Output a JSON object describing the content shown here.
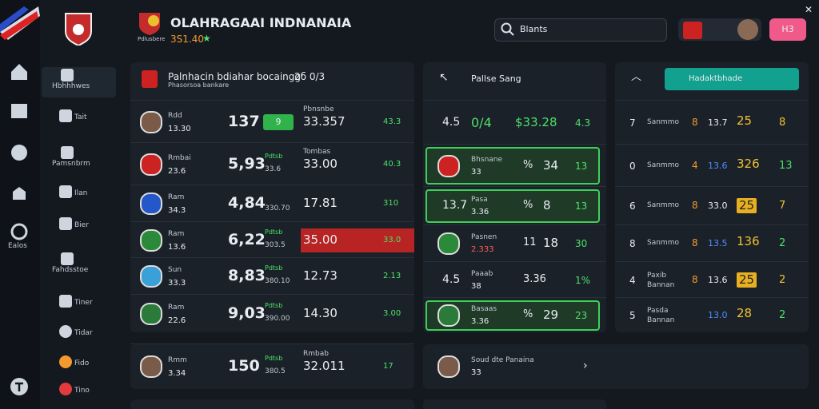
{
  "sidebar": {
    "rail_label": "Ealos",
    "items": [
      "Hbhhhwes",
      "Tait",
      "Pamsnbrm",
      "Ilan",
      "Bier",
      "Fahdsstoe",
      "Tiner",
      "Tidar",
      "Fido",
      "Tino"
    ]
  },
  "header": {
    "title": "OLAHRAGAAI INDNANAIA",
    "subtitle": "3S1.40",
    "logo_caption": "Pdlusbere",
    "search": "Blants",
    "button": "H3"
  },
  "main_panel": {
    "title": "Palnhacin bdiahar bocaingg",
    "score": "2б 0/3",
    "subtitle": "Phasorsoa bankare",
    "rows": [
      {
        "name": "Rdd",
        "sub": "13.30",
        "value": "137",
        "badge": "9",
        "odds_label": "Pbnsnbe",
        "odds": "33.357",
        "extra": "43.3"
      },
      {
        "name": "Rmbai",
        "sub": "23.6",
        "value": "5,93",
        "tag": "Pdtsb",
        "tag_sub": "33.6",
        "odds_label": "Tombas",
        "odds": "33.00",
        "extra": "40.3"
      },
      {
        "name": "Ram",
        "sub": "34.3",
        "value": "4,84",
        "tag_sub": "330.70",
        "odds": "17.81",
        "extra": "310"
      },
      {
        "name": "Ram",
        "sub": "13.6",
        "value": "6,22",
        "tag": "Pdtsb",
        "tag_sub": "303.5",
        "odds": "35.00",
        "extra": "33.0"
      },
      {
        "name": "Sun",
        "sub": "33.3",
        "value": "8,83",
        "tag": "Pdtsb",
        "tag_sub": "380.10",
        "odds": "12.73",
        "extra": "2.13"
      },
      {
        "name": "Ram",
        "sub": "22.6",
        "value": "9,03",
        "tag": "Pdtsb",
        "tag_sub": "390.00",
        "odds": "14.30",
        "extra": "3.00"
      }
    ]
  },
  "middle_panel": {
    "title": "Pallse Sang",
    "rows": [
      {
        "lead": "4.5",
        "a": "0/4",
        "b": "$33.28",
        "c": "4.3"
      },
      {
        "name": "Bhsnane",
        "sub": "33",
        "a": "%",
        "b": "34",
        "c": "13"
      },
      {
        "lead": "13.7",
        "name": "Pasa",
        "sub": "3.36",
        "a": "%",
        "b": "8",
        "c": "13"
      },
      {
        "name": "Pasnen",
        "sub": "2.333",
        "a": "11",
        "b": "18",
        "c": "30"
      },
      {
        "lead": "4.5",
        "name": "Paaab",
        "sub": "38",
        "a": "3.36",
        "c": "1%"
      },
      {
        "name": "Basaas",
        "sub": "3.36",
        "a": "%",
        "b": "29",
        "c": "23"
      }
    ]
  },
  "right_panel": {
    "dropdown": "Hadaktbhade",
    "rows": [
      {
        "rank": "7",
        "name": "Sanmmo",
        "a": "8",
        "b": "13.7",
        "c": "25",
        "d": "8"
      },
      {
        "rank": "0",
        "name": "Sanmmo",
        "a": "4",
        "b": "13.6",
        "c": "326",
        "d": "13"
      },
      {
        "rank": "6",
        "name": "Sanmmo",
        "a": "8",
        "b": "33.0",
        "c": "25",
        "d": "7"
      },
      {
        "rank": "8",
        "name": "Sanmmo",
        "a": "8",
        "b": "13.5",
        "c": "136",
        "d": "2"
      },
      {
        "rank": "4",
        "name": "Paxib",
        "sub": "Bannan",
        "a": "8",
        "b": "13.6",
        "c": "25",
        "d": "2"
      },
      {
        "rank": "5",
        "name": "Pasda",
        "sub": "Bannan",
        "b": "13.0",
        "c": "28",
        "d": "2"
      }
    ]
  },
  "bottom_left": {
    "name": "Rmm",
    "sub": "3.34",
    "value": "150",
    "tag": "Pdtsb",
    "tag_sub": "380.5",
    "odds_label": "Rmbab",
    "odds": "32.011",
    "extra": "17"
  },
  "bottom_middle": {
    "name": "Soud dte Panaina",
    "sub": "33"
  }
}
